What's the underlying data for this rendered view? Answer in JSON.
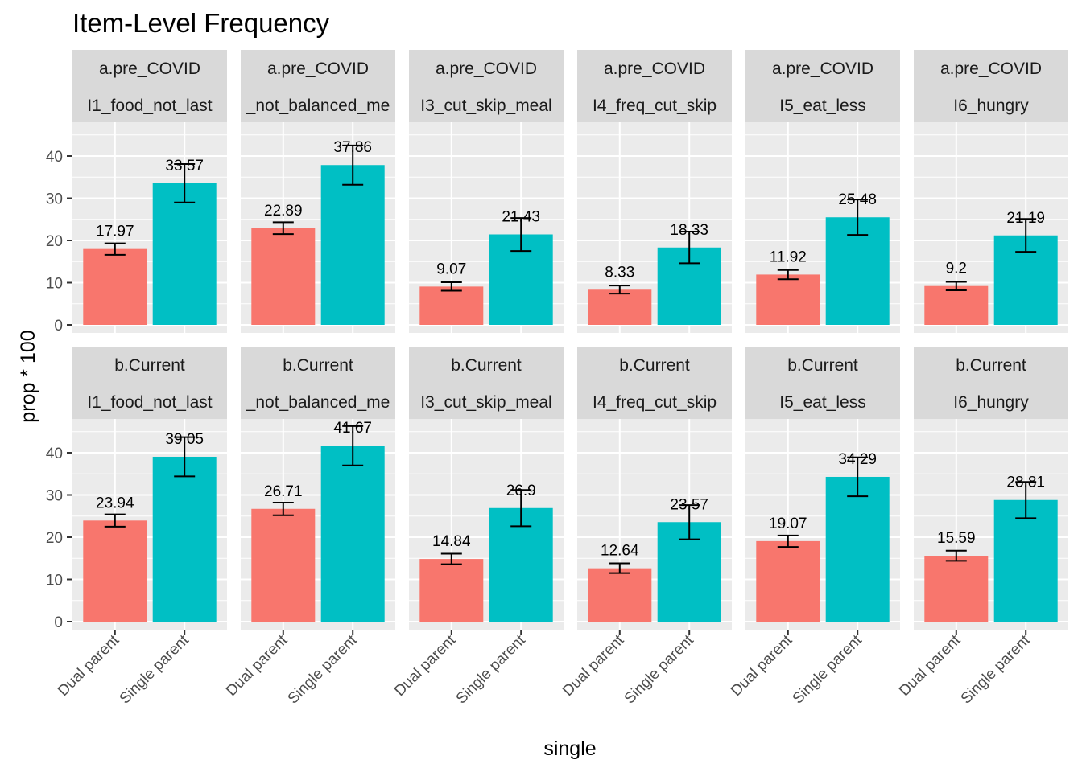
{
  "chart_data": {
    "type": "bar",
    "title": "Item-Level Frequency",
    "xlabel": "single",
    "ylabel": "prop * 100",
    "ylim": [
      0,
      48
    ],
    "yticks": [
      0,
      10,
      20,
      30,
      40
    ],
    "grid": true,
    "legend": "none",
    "categories": [
      "Dual parent",
      "Single parent"
    ],
    "colors": {
      "Dual parent": "#F8766D",
      "Single parent": "#00BFC4"
    },
    "panel_background": "#EBEBEB",
    "strip_background": "#D9D9D9",
    "rows": [
      "a.pre_COVID",
      "b.Current"
    ],
    "columns": [
      "I1_food_not_last",
      "_not_balanced_me",
      "I3_cut_skip_meal",
      "I4_freq_cut_skip",
      "I5_eat_less",
      "I6_hungry"
    ],
    "panels": [
      {
        "row": "a.pre_COVID",
        "col": "I1_food_not_last",
        "values": [
          17.97,
          33.57
        ],
        "labels": [
          "17.97",
          "33.57"
        ],
        "err_low": [
          16.6,
          29.0
        ],
        "err_high": [
          19.3,
          38.1
        ]
      },
      {
        "row": "a.pre_COVID",
        "col": "_not_balanced_me",
        "values": [
          22.89,
          37.86
        ],
        "labels": [
          "22.89",
          "37.86"
        ],
        "err_low": [
          21.5,
          33.2
        ],
        "err_high": [
          24.3,
          42.5
        ]
      },
      {
        "row": "a.pre_COVID",
        "col": "I3_cut_skip_meal",
        "values": [
          9.07,
          21.43
        ],
        "labels": [
          "9.07",
          "21.43"
        ],
        "err_low": [
          8.1,
          17.5
        ],
        "err_high": [
          10.1,
          25.3
        ]
      },
      {
        "row": "a.pre_COVID",
        "col": "I4_freq_cut_skip",
        "values": [
          8.33,
          18.33
        ],
        "labels": [
          "8.33",
          "18.33"
        ],
        "err_low": [
          7.4,
          14.6
        ],
        "err_high": [
          9.3,
          22.1
        ]
      },
      {
        "row": "a.pre_COVID",
        "col": "I5_eat_less",
        "values": [
          11.92,
          25.48
        ],
        "labels": [
          "11.92",
          "25.48"
        ],
        "err_low": [
          10.8,
          21.3
        ],
        "err_high": [
          13.0,
          29.7
        ]
      },
      {
        "row": "a.pre_COVID",
        "col": "I6_hungry",
        "values": [
          9.2,
          21.19
        ],
        "labels": [
          "9.2",
          "21.19"
        ],
        "err_low": [
          8.2,
          17.3
        ],
        "err_high": [
          10.2,
          25.1
        ]
      },
      {
        "row": "b.Current",
        "col": "I1_food_not_last",
        "values": [
          23.94,
          39.05
        ],
        "labels": [
          "23.94",
          "39.05"
        ],
        "err_low": [
          22.5,
          34.4
        ],
        "err_high": [
          25.4,
          43.7
        ]
      },
      {
        "row": "b.Current",
        "col": "_not_balanced_me",
        "values": [
          26.71,
          41.67
        ],
        "labels": [
          "26.71",
          "41.67"
        ],
        "err_low": [
          25.2,
          37.0
        ],
        "err_high": [
          28.2,
          46.3
        ]
      },
      {
        "row": "b.Current",
        "col": "I3_cut_skip_meal",
        "values": [
          14.84,
          26.9
        ],
        "labels": [
          "14.84",
          "26.9"
        ],
        "err_low": [
          13.6,
          22.6
        ],
        "err_high": [
          16.1,
          31.2
        ]
      },
      {
        "row": "b.Current",
        "col": "I4_freq_cut_skip",
        "values": [
          12.64,
          23.57
        ],
        "labels": [
          "12.64",
          "23.57"
        ],
        "err_low": [
          11.5,
          19.5
        ],
        "err_high": [
          13.8,
          27.6
        ]
      },
      {
        "row": "b.Current",
        "col": "I5_eat_less",
        "values": [
          19.07,
          34.29
        ],
        "labels": [
          "19.07",
          "34.29"
        ],
        "err_low": [
          17.7,
          29.7
        ],
        "err_high": [
          20.4,
          38.9
        ]
      },
      {
        "row": "b.Current",
        "col": "I6_hungry",
        "values": [
          15.59,
          28.81
        ],
        "labels": [
          "15.59",
          "28.81"
        ],
        "err_low": [
          14.4,
          24.5
        ],
        "err_high": [
          16.8,
          33.1
        ]
      }
    ]
  }
}
